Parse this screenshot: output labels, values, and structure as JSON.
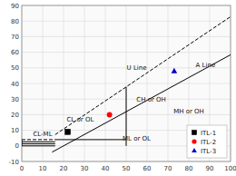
{
  "chart_data": {
    "type": "scatter",
    "xlim": [
      0,
      100
    ],
    "ylim": [
      -10,
      90
    ],
    "xticks": [
      0,
      10,
      20,
      30,
      40,
      50,
      60,
      70,
      80,
      90,
      100
    ],
    "yticks": [
      -10,
      0,
      10,
      20,
      30,
      40,
      50,
      60,
      70,
      80,
      90
    ],
    "grid": true,
    "legend": "lower right",
    "series": [
      {
        "name": "ITL-1",
        "type": "scatter",
        "color": "#000000",
        "marker": "square",
        "x": [
          22
        ],
        "values": [
          9
        ]
      },
      {
        "name": "ITL-2",
        "type": "scatter",
        "color": "#ff0000",
        "marker": "circle",
        "x": [
          42
        ],
        "values": [
          20
        ]
      },
      {
        "name": "ITL-3",
        "type": "scatter",
        "color": "#0000cc",
        "marker": "triangle",
        "x": [
          73
        ],
        "values": [
          48
        ]
      },
      {
        "type": "line",
        "color": "#000000",
        "line_style": "solid",
        "x": [
          14.5,
          100
        ],
        "values": [
          -4.015,
          58.4
        ]
      },
      {
        "type": "line",
        "color": "#000000",
        "line_style": "dashed",
        "x": [
          16,
          100
        ],
        "values": [
          7.2,
          82.8
        ]
      },
      {
        "type": "line",
        "color": "#000000",
        "line_style": "solid",
        "x": [
          50,
          50
        ],
        "values": [
          0,
          37.8
        ]
      },
      {
        "type": "line",
        "color": "#000000",
        "line_style": "solid",
        "x": [
          16,
          50
        ],
        "values": [
          4,
          4
        ]
      },
      {
        "type": "line",
        "color": "#000000",
        "line_style": "dashed",
        "x": [
          0,
          16
        ],
        "values": [
          4,
          4
        ]
      },
      {
        "type": "line",
        "color": "#000000",
        "line_style": "solid",
        "x": [
          0,
          16
        ],
        "values": [
          0,
          0
        ]
      },
      {
        "type": "line",
        "color": "#000000",
        "line_style": "solid",
        "x": [
          0,
          16
        ],
        "values": [
          1.3,
          1.3
        ]
      },
      {
        "type": "line",
        "color": "#000000",
        "line_style": "solid",
        "x": [
          0,
          16
        ],
        "values": [
          2.6,
          2.6
        ]
      },
      {
        "type": "line",
        "color": "#000000",
        "line_style": "solid",
        "x": [
          0,
          0
        ],
        "values": [
          0,
          4
        ]
      }
    ],
    "annotations": [
      {
        "text": "CL or OL",
        "x": 28,
        "y": 17
      },
      {
        "text": "CH or OH",
        "x": 62,
        "y": 30
      },
      {
        "text": "MH or OH",
        "x": 80,
        "y": 22
      },
      {
        "text": "ML or OL",
        "x": 55,
        "y": 5
      },
      {
        "text": "CL-ML",
        "x": 10,
        "y": 8
      },
      {
        "text": "A Line",
        "x": 88,
        "y": 52
      },
      {
        "text": "U Line",
        "x": 55,
        "y": 50
      }
    ]
  }
}
